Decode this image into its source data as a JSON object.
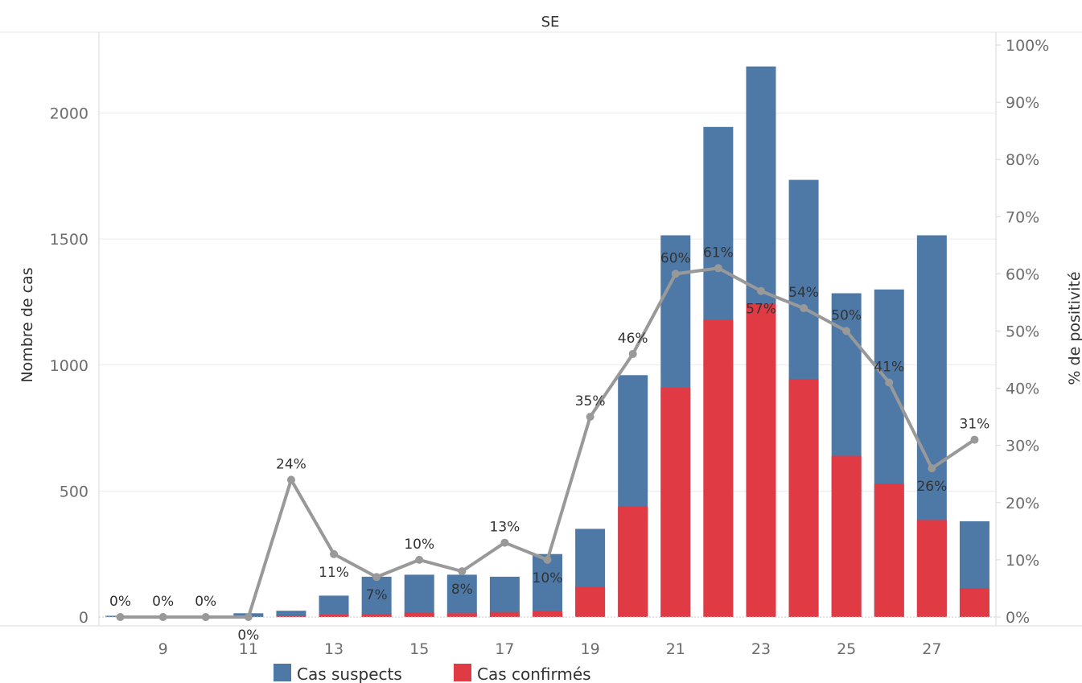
{
  "chart_data": {
    "type": "bar",
    "title": "SE",
    "ylabel": "Nombre de cas",
    "y2label": "% de positivité",
    "ylim": [
      0,
      2270
    ],
    "y2lim": [
      0,
      100
    ],
    "yticks": [
      "0",
      "500",
      "1000",
      "1500",
      "2000"
    ],
    "y2ticks": [
      "0%",
      "10%",
      "20%",
      "30%",
      "40%",
      "50%",
      "60%",
      "70%",
      "80%",
      "90%",
      "100%"
    ],
    "x": [
      8,
      9,
      10,
      11,
      12,
      13,
      14,
      15,
      16,
      17,
      18,
      19,
      20,
      21,
      22,
      23,
      24,
      25,
      26,
      27,
      28
    ],
    "xticks": [
      "9",
      "11",
      "13",
      "15",
      "17",
      "19",
      "21",
      "23",
      "25",
      "27"
    ],
    "stacked": false,
    "series": [
      {
        "name": "Cas suspects",
        "color": "#4e79a7",
        "type": "bar",
        "values": [
          5,
          3,
          4,
          15,
          25,
          85,
          160,
          168,
          168,
          160,
          250,
          350,
          960,
          1515,
          1945,
          2185,
          1735,
          1285,
          1300,
          1515,
          380
        ]
      },
      {
        "name": "Cas confirmés",
        "color": "#e03b44",
        "type": "bar",
        "values": [
          0,
          0,
          0,
          0,
          5,
          10,
          12,
          18,
          15,
          20,
          25,
          120,
          440,
          910,
          1180,
          1245,
          945,
          640,
          530,
          385,
          115
        ]
      },
      {
        "name": "% de positivité",
        "color": "#999999",
        "type": "line",
        "axis": "right",
        "values": [
          0,
          0,
          0,
          0,
          24,
          11,
          7,
          10,
          8,
          13,
          10,
          35,
          46,
          60,
          61,
          57,
          54,
          50,
          41,
          26,
          31
        ]
      }
    ],
    "data_labels": [
      {
        "index": 0,
        "text": "0%",
        "pos": "above"
      },
      {
        "index": 1,
        "text": "0%",
        "pos": "above"
      },
      {
        "index": 2,
        "text": "0%",
        "pos": "above"
      },
      {
        "index": 3,
        "text": "0%",
        "pos": "below"
      },
      {
        "index": 4,
        "text": "24%",
        "pos": "above"
      },
      {
        "index": 5,
        "text": "11%",
        "pos": "below"
      },
      {
        "index": 6,
        "text": "7%",
        "pos": "below"
      },
      {
        "index": 7,
        "text": "10%",
        "pos": "above"
      },
      {
        "index": 8,
        "text": "8%",
        "pos": "below"
      },
      {
        "index": 9,
        "text": "13%",
        "pos": "above"
      },
      {
        "index": 10,
        "text": "10%",
        "pos": "below"
      },
      {
        "index": 11,
        "text": "35%",
        "pos": "above"
      },
      {
        "index": 12,
        "text": "46%",
        "pos": "above"
      },
      {
        "index": 13,
        "text": "60%",
        "pos": "above"
      },
      {
        "index": 14,
        "text": "61%",
        "pos": "above"
      },
      {
        "index": 15,
        "text": "57%",
        "pos": "below"
      },
      {
        "index": 16,
        "text": "54%",
        "pos": "above"
      },
      {
        "index": 17,
        "text": "50%",
        "pos": "above"
      },
      {
        "index": 18,
        "text": "41%",
        "pos": "above"
      },
      {
        "index": 19,
        "text": "26%",
        "pos": "below"
      },
      {
        "index": 20,
        "text": "31%",
        "pos": "above"
      }
    ],
    "legend": {
      "position": "bottom",
      "entries": [
        "Cas suspects",
        "Cas confirmés"
      ]
    },
    "grid": true
  }
}
